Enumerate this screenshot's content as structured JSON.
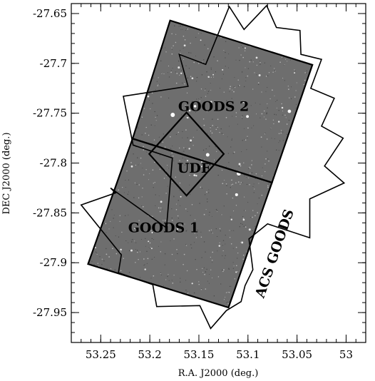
{
  "chart_data": {
    "type": "scatter",
    "title": "",
    "xlabel": "R.A. J2000 (deg.)",
    "ylabel": "DEC J2000 (deg.)",
    "xlim": [
      53.28,
      52.98
    ],
    "ylim": [
      -27.98,
      -27.64
    ],
    "x_reversed": true,
    "xticks": [
      53.25,
      53.2,
      53.15,
      53.1,
      53.05,
      53.0
    ],
    "xtick_labels": [
      "53.25",
      "53.2",
      "53.15",
      "53.1",
      "53.05",
      "53"
    ],
    "yticks": [
      -27.65,
      -27.7,
      -27.75,
      -27.8,
      -27.85,
      -27.9,
      -27.95
    ],
    "ytick_labels": [
      "-27.65",
      "-27.7",
      "-27.75",
      "-27.8",
      "-27.85",
      "-27.9",
      "-27.95"
    ],
    "grid": false,
    "image_background_color": "#6e6e6e",
    "footprints": [
      {
        "label": "ACS GOODS",
        "vertices": [
          [
            53.183,
            -27.865
          ],
          [
            53.177,
            -27.795
          ],
          [
            53.217,
            -27.782
          ],
          [
            53.227,
            -27.733
          ],
          [
            53.161,
            -27.723
          ],
          [
            53.17,
            -27.691
          ],
          [
            53.143,
            -27.701
          ],
          [
            53.119,
            -27.643
          ],
          [
            53.104,
            -27.666
          ],
          [
            53.081,
            -27.642
          ],
          [
            53.071,
            -27.664
          ],
          [
            53.047,
            -27.667
          ],
          [
            53.046,
            -27.691
          ],
          [
            53.025,
            -27.696
          ],
          [
            53.036,
            -27.725
          ],
          [
            53.012,
            -27.735
          ],
          [
            53.025,
            -27.763
          ],
          [
            53.003,
            -27.775
          ],
          [
            53.022,
            -27.803
          ],
          [
            53.002,
            -27.82
          ],
          [
            53.037,
            -27.836
          ],
          [
            53.037,
            -27.875
          ],
          [
            53.08,
            -27.861
          ],
          [
            53.099,
            -27.876
          ],
          [
            53.095,
            -27.907
          ],
          [
            53.103,
            -27.923
          ],
          [
            53.107,
            -27.939
          ],
          [
            53.122,
            -27.948
          ],
          [
            53.138,
            -27.966
          ],
          [
            53.149,
            -27.943
          ],
          [
            53.193,
            -27.944
          ],
          [
            53.197,
            -27.922
          ],
          [
            53.232,
            -27.91
          ],
          [
            53.229,
            -27.892
          ],
          [
            53.27,
            -27.842
          ],
          [
            53.235,
            -27.83
          ],
          [
            53.24,
            -27.825
          ],
          [
            53.183,
            -27.865
          ]
        ]
      },
      {
        "label": "GOODS 2",
        "vertices": [
          [
            53.2175,
            -27.7755
          ],
          [
            53.1793,
            -27.657
          ],
          [
            53.0343,
            -27.7015
          ],
          [
            53.0755,
            -27.8196
          ]
        ]
      },
      {
        "label": "GOODS 1",
        "vertices": [
          [
            53.2175,
            -27.7755
          ],
          [
            53.0755,
            -27.8196
          ],
          [
            53.1198,
            -27.9449
          ],
          [
            53.2629,
            -27.9013
          ]
        ]
      },
      {
        "label": "UDF",
        "vertices": [
          [
            53.1626,
            -27.7492
          ],
          [
            53.1246,
            -27.7909
          ],
          [
            53.1626,
            -27.8326
          ],
          [
            53.2006,
            -27.7909
          ]
        ]
      }
    ],
    "text_labels": [
      {
        "text": "GOODS 2",
        "x": 53.135,
        "y": -27.744,
        "rotation": 0
      },
      {
        "text": "UDF",
        "x": 53.155,
        "y": -27.806,
        "rotation": 0
      },
      {
        "text": "GOODS 1",
        "x": 53.186,
        "y": -27.866,
        "rotation": 0
      },
      {
        "text": "ACS GOODS",
        "x": 53.072,
        "y": -27.891,
        "rotation": -71
      }
    ]
  }
}
